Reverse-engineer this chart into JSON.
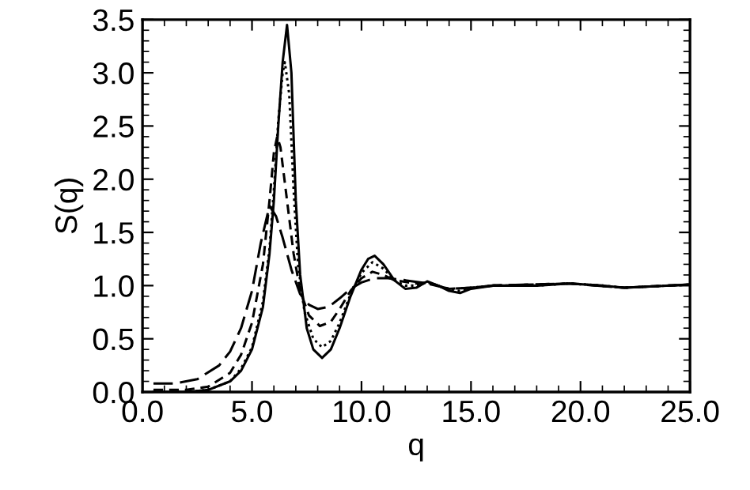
{
  "chart_data": {
    "type": "line",
    "xlabel": "q",
    "ylabel": "S(q)",
    "xlim": [
      0,
      25
    ],
    "ylim": [
      0,
      3.5
    ],
    "xticks": [
      {
        "value": 0,
        "label": "0.0"
      },
      {
        "value": 5,
        "label": "5.0"
      },
      {
        "value": 10,
        "label": "10.0"
      },
      {
        "value": 15,
        "label": "15.0"
      },
      {
        "value": 20,
        "label": "20.0"
      },
      {
        "value": 25,
        "label": "25.0"
      }
    ],
    "yticks": [
      {
        "value": 0,
        "label": "0.0"
      },
      {
        "value": 0.5,
        "label": "0.5"
      },
      {
        "value": 1,
        "label": "1.0"
      },
      {
        "value": 1.5,
        "label": "1.5"
      },
      {
        "value": 2,
        "label": "2.0"
      },
      {
        "value": 2.5,
        "label": "2.5"
      },
      {
        "value": 3,
        "label": "3.0"
      },
      {
        "value": 3.5,
        "label": "3.5"
      }
    ],
    "marker": "none",
    "series": [
      {
        "color": "#000000",
        "line_style": "solid",
        "x": [
          0.5,
          2,
          3,
          4,
          4.5,
          5,
          5.5,
          5.8,
          6,
          6.2,
          6.4,
          6.6,
          6.8,
          7,
          7.2,
          7.5,
          7.8,
          8.2,
          8.6,
          9,
          9.5,
          10,
          10.3,
          10.6,
          11,
          11.5,
          12,
          12.5,
          13,
          13.5,
          14,
          14.5,
          15,
          16,
          18,
          19.5,
          21,
          22,
          23,
          25
        ],
        "values": [
          0.0,
          0.0,
          0.02,
          0.1,
          0.2,
          0.4,
          0.8,
          1.3,
          1.8,
          2.5,
          3.1,
          3.45,
          3.0,
          1.8,
          1.1,
          0.6,
          0.4,
          0.32,
          0.4,
          0.6,
          0.9,
          1.15,
          1.25,
          1.28,
          1.2,
          1.05,
          0.97,
          0.98,
          1.04,
          1.0,
          0.95,
          0.93,
          0.97,
          1.0,
          1.0,
          1.02,
          1.0,
          0.98,
          0.99,
          1.01
        ]
      },
      {
        "color": "#000000",
        "line_style": "dotted",
        "x": [
          0.5,
          2,
          3,
          4,
          4.5,
          5,
          5.5,
          5.8,
          6,
          6.2,
          6.4,
          6.5,
          6.7,
          6.9,
          7.1,
          7.4,
          7.8,
          8.2,
          8.6,
          9,
          9.5,
          10,
          10.5,
          11,
          11.5,
          12,
          12.5,
          13,
          13.5,
          14,
          14.5,
          15,
          16,
          18,
          19.5,
          21,
          22,
          25
        ],
        "values": [
          0.0,
          0.0,
          0.02,
          0.1,
          0.22,
          0.42,
          0.85,
          1.35,
          1.9,
          2.55,
          3.0,
          3.1,
          2.8,
          1.9,
          1.2,
          0.75,
          0.5,
          0.42,
          0.48,
          0.65,
          0.92,
          1.12,
          1.22,
          1.16,
          1.05,
          1.0,
          1.0,
          1.03,
          1.0,
          0.96,
          0.95,
          0.98,
          1.0,
          1.0,
          1.02,
          1.0,
          0.98,
          1.01
        ]
      },
      {
        "color": "#000000",
        "line_style": "dashed",
        "x": [
          0.5,
          2,
          3,
          4,
          4.5,
          5,
          5.5,
          5.8,
          6,
          6.15,
          6.3,
          6.6,
          6.9,
          7.2,
          7.6,
          8.1,
          8.6,
          9,
          9.5,
          10,
          10.5,
          11,
          11.5,
          12.5,
          13,
          14,
          15,
          16,
          19.5,
          22,
          25
        ],
        "values": [
          0.02,
          0.02,
          0.05,
          0.18,
          0.35,
          0.65,
          1.2,
          1.8,
          2.25,
          2.4,
          2.3,
          1.8,
          1.3,
          0.95,
          0.72,
          0.62,
          0.66,
          0.78,
          0.95,
          1.07,
          1.13,
          1.1,
          1.05,
          1.02,
          1.03,
          0.97,
          0.98,
          1.0,
          1.02,
          0.98,
          1.01
        ]
      },
      {
        "color": "#000000",
        "line_style": "longdash",
        "x": [
          0.5,
          1.5,
          2.5,
          3.5,
          4,
          4.5,
          5,
          5.4,
          5.8,
          6.1,
          6.4,
          6.8,
          7.2,
          7.6,
          8,
          8.5,
          9,
          9.5,
          10,
          10.6,
          11.2,
          12,
          13,
          14,
          15,
          16,
          19.5,
          22,
          25
        ],
        "values": [
          0.08,
          0.08,
          0.12,
          0.25,
          0.38,
          0.6,
          0.95,
          1.4,
          1.75,
          1.65,
          1.45,
          1.15,
          0.92,
          0.82,
          0.78,
          0.8,
          0.88,
          0.97,
          1.03,
          1.07,
          1.07,
          1.05,
          1.02,
          0.97,
          0.98,
          1.0,
          1.02,
          0.98,
          1.01
        ]
      }
    ]
  }
}
